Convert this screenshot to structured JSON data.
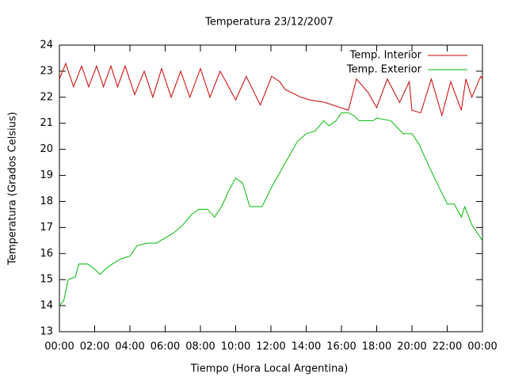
{
  "chart_data": {
    "type": "line",
    "title": "Temperatura 23/12/2007",
    "x_label": "Tiempo (Hora Local Argentina)",
    "y_label": "Temperatura (Grados Celsius)",
    "xlim": [
      0,
      24
    ],
    "xticks": [
      {
        "value": 0,
        "label": "00:00"
      },
      {
        "value": 2,
        "label": "02:00"
      },
      {
        "value": 4,
        "label": "04:00"
      },
      {
        "value": 6,
        "label": "06:00"
      },
      {
        "value": 8,
        "label": "08:00"
      },
      {
        "value": 10,
        "label": "10:00"
      },
      {
        "value": 12,
        "label": "12:00"
      },
      {
        "value": 14,
        "label": "14:00"
      },
      {
        "value": 16,
        "label": "16:00"
      },
      {
        "value": 18,
        "label": "18:00"
      },
      {
        "value": 20,
        "label": "20:00"
      },
      {
        "value": 22,
        "label": "22:00"
      },
      {
        "value": 24,
        "label": "00:00"
      }
    ],
    "ylim": [
      13,
      24
    ],
    "yticks": [
      13,
      14,
      15,
      16,
      17,
      18,
      19,
      20,
      21,
      22,
      23,
      24
    ],
    "legend": "top-right",
    "series": [
      {
        "name": "Temp. Interior",
        "color": "#cc0000",
        "x": [
          0,
          0.36,
          0.8,
          1.26,
          1.66,
          2.11,
          2.5,
          2.92,
          3.3,
          3.73,
          4.27,
          4.81,
          5.3,
          5.8,
          6.34,
          6.88,
          7.4,
          8.0,
          8.54,
          9.12,
          10.0,
          10.6,
          11.4,
          12.04,
          12.5,
          12.8,
          13.7,
          14.2,
          15.06,
          15.96,
          16.4,
          16.85,
          17.5,
          18.0,
          18.6,
          19.3,
          19.85,
          20.0,
          20.5,
          21.1,
          21.7,
          22.2,
          22.8,
          23.06,
          23.4,
          23.9,
          24
        ],
        "values": [
          22.7,
          23.3,
          22.4,
          23.2,
          22.4,
          23.2,
          22.4,
          23.2,
          22.4,
          23.2,
          22.1,
          23.0,
          22.0,
          23.1,
          22.0,
          23.0,
          22.0,
          23.1,
          22.0,
          23.0,
          21.9,
          22.8,
          21.7,
          22.8,
          22.6,
          22.3,
          22.0,
          21.9,
          21.8,
          21.6,
          21.5,
          22.7,
          22.2,
          21.6,
          22.7,
          21.8,
          22.6,
          21.5,
          21.4,
          22.7,
          21.3,
          22.6,
          21.5,
          22.7,
          22.0,
          22.8,
          22.7
        ]
      },
      {
        "name": "Temp. Exterior",
        "color": "#00bb00",
        "x": [
          0,
          0.25,
          0.5,
          0.9,
          1.1,
          1.6,
          2.0,
          2.3,
          2.6,
          3.0,
          3.5,
          4.0,
          4.4,
          5.0,
          5.5,
          6.0,
          6.5,
          7.0,
          7.5,
          7.9,
          8.4,
          8.8,
          9.2,
          9.6,
          10.0,
          10.4,
          10.8,
          11.5,
          12.0,
          12.5,
          13.0,
          13.5,
          14.0,
          14.5,
          15.0,
          15.3,
          15.7,
          16.0,
          16.4,
          16.7,
          17.0,
          17.8,
          18.0,
          18.8,
          19.5,
          20.0,
          20.4,
          21.0,
          21.5,
          22.0,
          22.4,
          22.8,
          23.0,
          23.4,
          23.8,
          24
        ],
        "values": [
          14.0,
          14.2,
          15.0,
          15.1,
          15.6,
          15.6,
          15.4,
          15.2,
          15.4,
          15.6,
          15.8,
          15.9,
          16.3,
          16.4,
          16.4,
          16.6,
          16.8,
          17.1,
          17.5,
          17.7,
          17.7,
          17.4,
          17.8,
          18.4,
          18.9,
          18.7,
          17.8,
          17.8,
          18.5,
          19.1,
          19.7,
          20.3,
          20.6,
          20.7,
          21.1,
          20.9,
          21.1,
          21.4,
          21.4,
          21.3,
          21.1,
          21.1,
          21.2,
          21.1,
          20.6,
          20.6,
          20.2,
          19.3,
          18.6,
          17.9,
          17.9,
          17.4,
          17.8,
          17.1,
          16.7,
          16.5
        ]
      }
    ]
  }
}
